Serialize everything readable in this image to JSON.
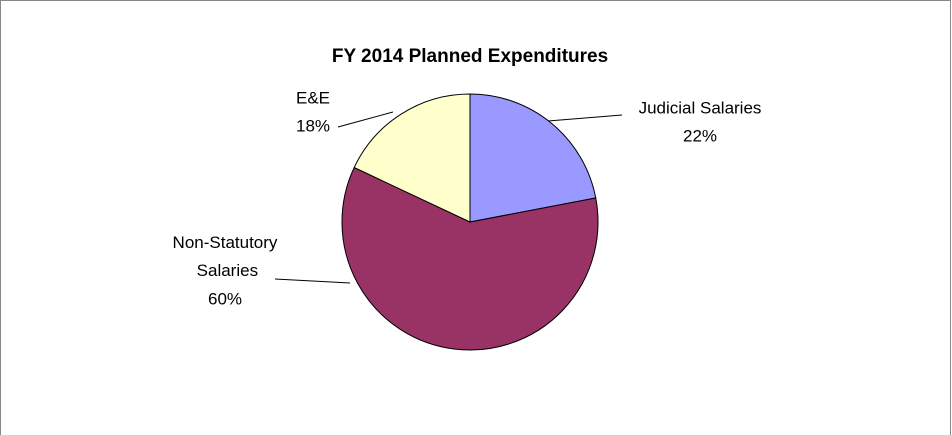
{
  "chart_data": {
    "type": "pie",
    "title": "FY 2014 Planned Expenditures",
    "categories": [
      "Judicial Salaries",
      "Non-Statutory Salaries",
      "E&E"
    ],
    "values": [
      22,
      60,
      18
    ],
    "value_labels": [
      "22%",
      "60%",
      "18%"
    ],
    "colors": [
      "#9999ff",
      "#993366",
      "#ffffcc"
    ]
  }
}
